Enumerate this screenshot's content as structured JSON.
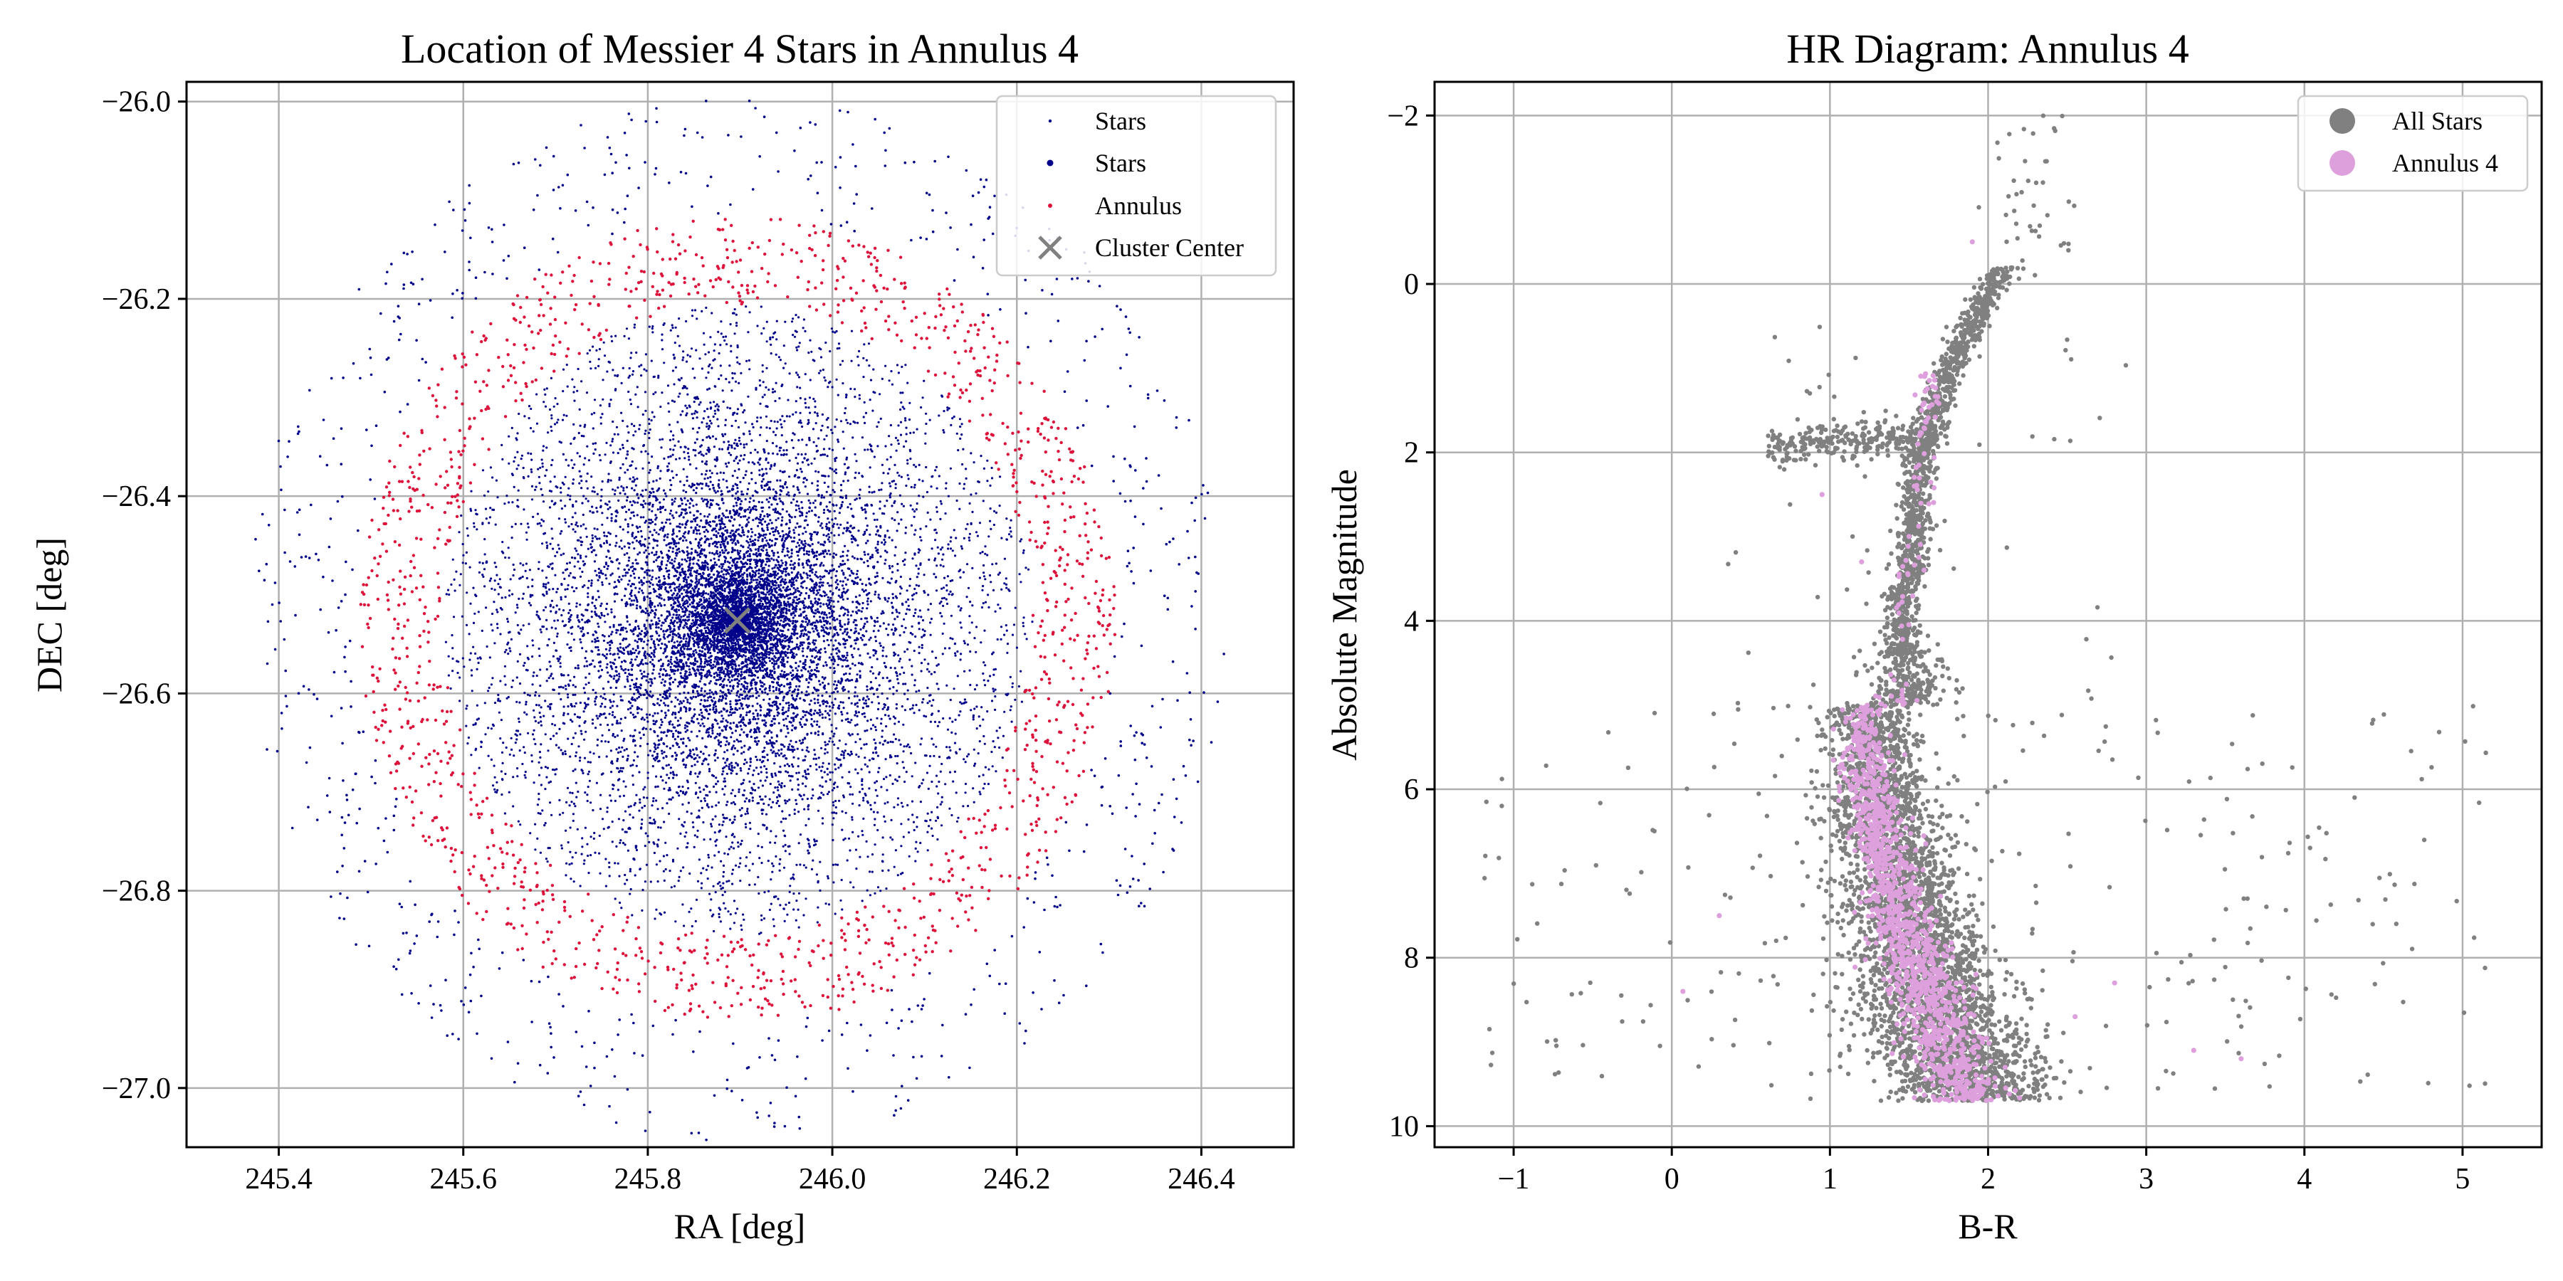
{
  "figure": {
    "left": {
      "chart_data": {
        "type": "scatter",
        "title": "Location of Messier 4 Stars in Annulus 4",
        "xlabel": "RA [deg]",
        "ylabel": "DEC [deg]",
        "xlim": [
          245.3,
          246.5
        ],
        "ylim": [
          -27.06,
          -25.98
        ],
        "xticks": [
          245.4,
          245.6,
          245.8,
          246.0,
          246.2,
          246.4
        ],
        "xtick_labels": [
          "245.4",
          "245.6",
          "245.8",
          "246.0",
          "246.2",
          "246.4"
        ],
        "yticks": [
          -26.0,
          -26.2,
          -26.4,
          -26.6,
          -26.8,
          -27.0
        ],
        "ytick_labels": [
          "−26.0",
          "−26.2",
          "−26.4",
          "−26.6",
          "−26.8",
          "−27.0"
        ],
        "grid": true,
        "legend_placement": "top-right",
        "cluster_center": {
          "ra": 245.897,
          "dec": -26.526
        },
        "annulus_inner_radius_deg": 0.32,
        "annulus_outer_radius_deg": 0.41,
        "series": [
          {
            "name": "Stars",
            "color": "#00008b",
            "marker": "tiny dot",
            "description": "outer field stars",
            "approx_count": 700
          },
          {
            "name": "Stars",
            "color": "#00008b",
            "marker": "dot",
            "description": "dense central cluster stars",
            "approx_count": 9000
          },
          {
            "name": "Annulus",
            "color": "#dc143c",
            "marker": "dot",
            "description": "stars in annulus 4",
            "approx_count": 1400
          },
          {
            "name": "Cluster Center",
            "color": "#808080",
            "marker": "x",
            "points": [
              [
                245.897,
                -26.526
              ]
            ]
          }
        ]
      }
    },
    "right": {
      "chart_data": {
        "type": "scatter",
        "title": "HR Diagram: Annulus 4",
        "xlabel": "B-R",
        "ylabel": "Absolute Magnitude",
        "xlim": [
          -1.5,
          5.5
        ],
        "ylim": [
          10.25,
          -2.4
        ],
        "y_inverted": true,
        "xticks": [
          -1,
          0,
          1,
          2,
          3,
          4,
          5
        ],
        "xtick_labels": [
          "−1",
          "0",
          "1",
          "2",
          "3",
          "4",
          "5"
        ],
        "yticks": [
          -2,
          0,
          2,
          4,
          6,
          8,
          10
        ],
        "ytick_labels": [
          "−2",
          "0",
          "2",
          "4",
          "6",
          "8",
          "10"
        ],
        "grid": true,
        "legend_placement": "top-right",
        "series": [
          {
            "name": "All Stars",
            "color": "#808080",
            "marker": "dot",
            "description": "main sequence, red giant branch and horizontal branch",
            "approx_count": 6000
          },
          {
            "name": "Annulus 4",
            "color": "#dda0dd",
            "marker": "dot",
            "description": "main sequence stars in annulus 4",
            "approx_count": 1300
          }
        ]
      }
    }
  }
}
